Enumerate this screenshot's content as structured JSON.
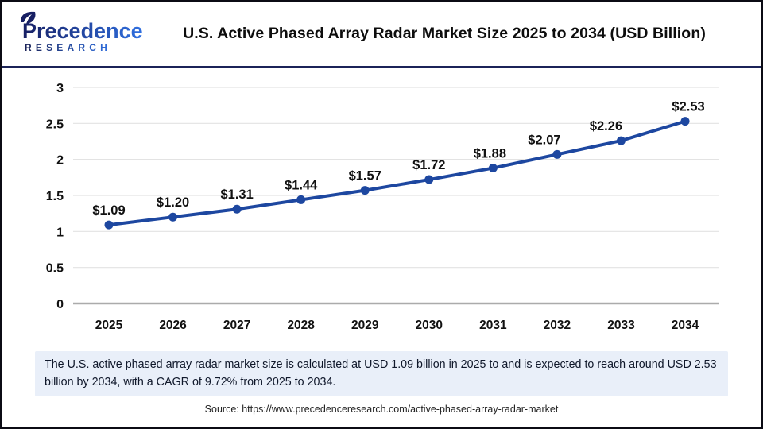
{
  "header": {
    "logo": {
      "brand_line1": "Precedence",
      "brand_line2": "RESEARCH"
    },
    "title": "U.S. Active Phased Array Radar Market Size 2025 to 2034 (USD Billion)"
  },
  "chart_data": {
    "type": "line",
    "title": "U.S. Active Phased Array Radar Market Size 2025 to 2034 (USD Billion)",
    "xlabel": "",
    "ylabel": "",
    "categories": [
      "2025",
      "2026",
      "2027",
      "2028",
      "2029",
      "2030",
      "2031",
      "2032",
      "2033",
      "2034"
    ],
    "values": [
      1.09,
      1.2,
      1.31,
      1.44,
      1.57,
      1.72,
      1.88,
      2.07,
      2.26,
      2.53
    ],
    "value_labels": [
      "$1.09",
      "$1.20",
      "$1.31",
      "$1.44",
      "$1.57",
      "$1.72",
      "$1.88",
      "$2.07",
      "$2.26",
      "$2.53"
    ],
    "ylim": [
      0,
      3
    ],
    "y_ticks": [
      0,
      0.5,
      1,
      1.5,
      2,
      2.5,
      3
    ],
    "y_tick_labels": [
      "0",
      "0.5",
      "1",
      "1.5",
      "2",
      "2.5",
      "3"
    ],
    "grid": true,
    "legend": "none",
    "unit": "USD Billion"
  },
  "summary": {
    "text": "The U.S. active phased array radar market size is calculated at USD 1.09 billion in 2025 to and is expected to reach around USD 2.53 billion by 2034, with a CAGR of 9.72% from 2025 to 2034."
  },
  "source": {
    "text": "Source: https://www.precedenceresearch.com/active-phased-array-radar-market"
  },
  "colors": {
    "line_blue": "#1d47a0",
    "brand_navy": "#171f63",
    "brand_blue": "#2f6fe0",
    "separator_navy": "#1b2358",
    "summary_bg": "#e9eff9",
    "gridline": "#e3e3e3",
    "axis_line": "#ababab",
    "label_black": "#111111"
  }
}
